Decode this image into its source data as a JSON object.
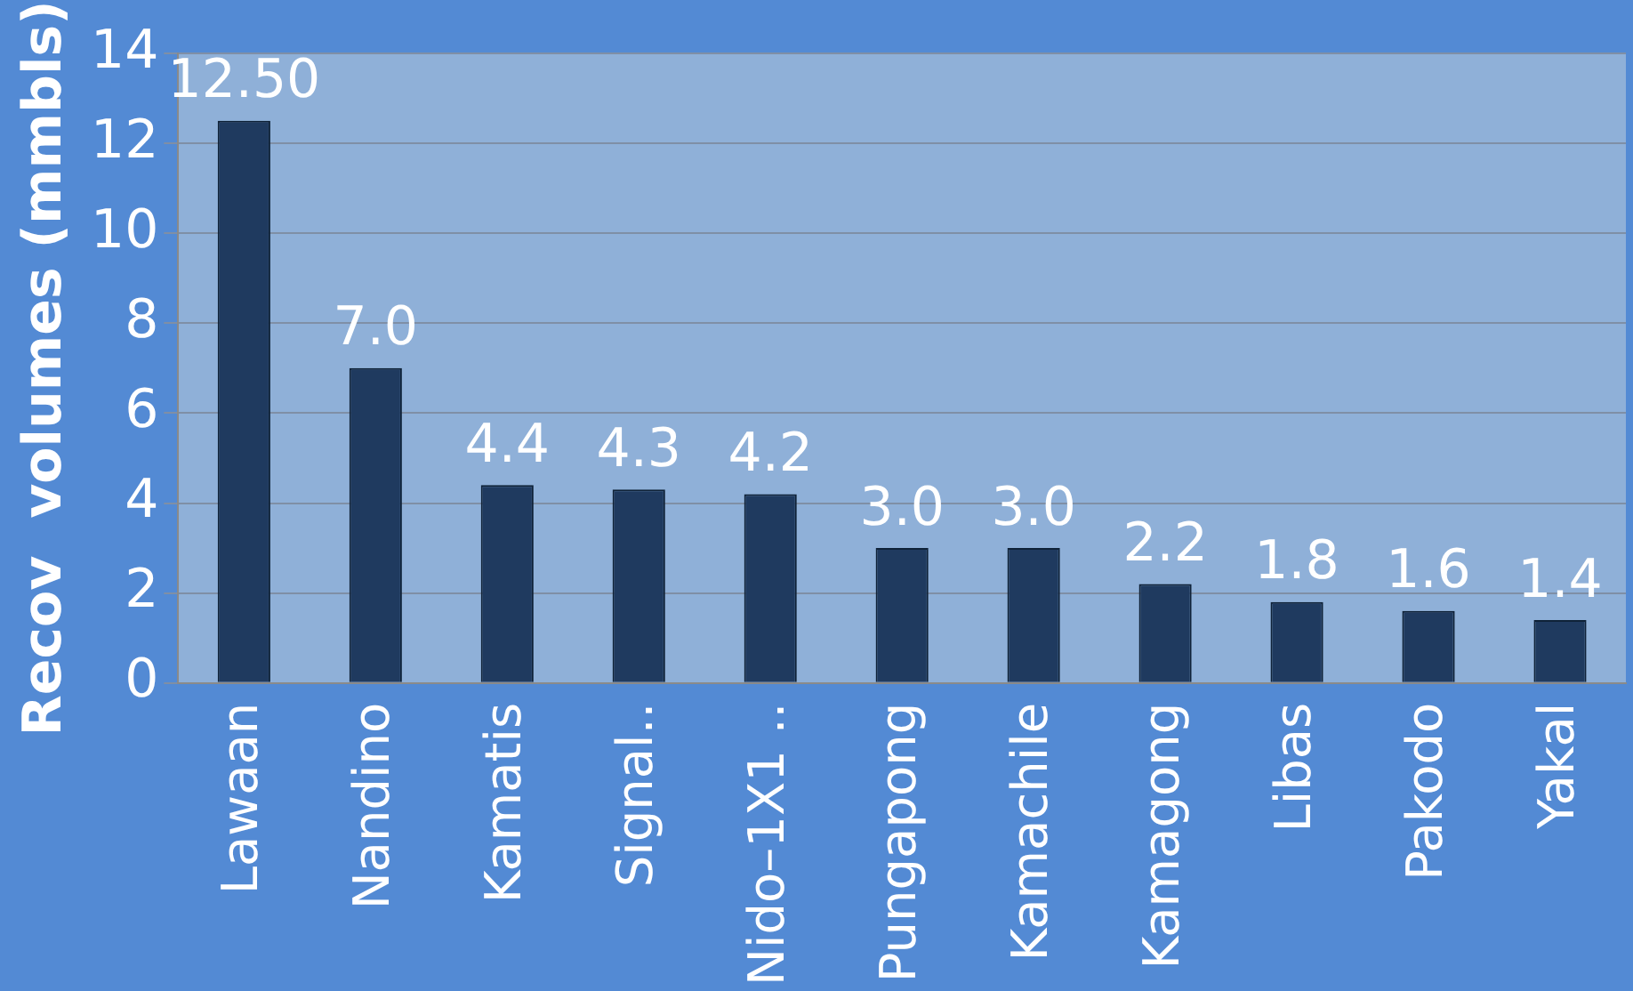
{
  "chart_data": {
    "type": "bar",
    "ylabel": "Recov  volumes (mmbls)",
    "categories": [
      "Lawaan",
      "Nandino",
      "Kamatis",
      "Signal..",
      "Nido–1X1 ..",
      "Pungapong",
      "Kamachile",
      "Kamagong",
      "Libas",
      "Pakodo",
      "Yakal"
    ],
    "values": [
      12.5,
      7.0,
      4.4,
      4.3,
      4.2,
      3.0,
      3.0,
      2.2,
      1.8,
      1.6,
      1.4
    ],
    "value_labels": [
      "12.50",
      "7.0",
      "4.4",
      "4.3",
      "4.2",
      "3.0",
      "3.0",
      "2.2",
      "1.8",
      "1.6",
      "1.4"
    ],
    "color": "#1f3a5f",
    "ylim": [
      0,
      14
    ],
    "yticks": [
      0,
      2,
      4,
      6,
      8,
      10,
      12,
      14
    ],
    "grid": "y",
    "legend": false
  }
}
